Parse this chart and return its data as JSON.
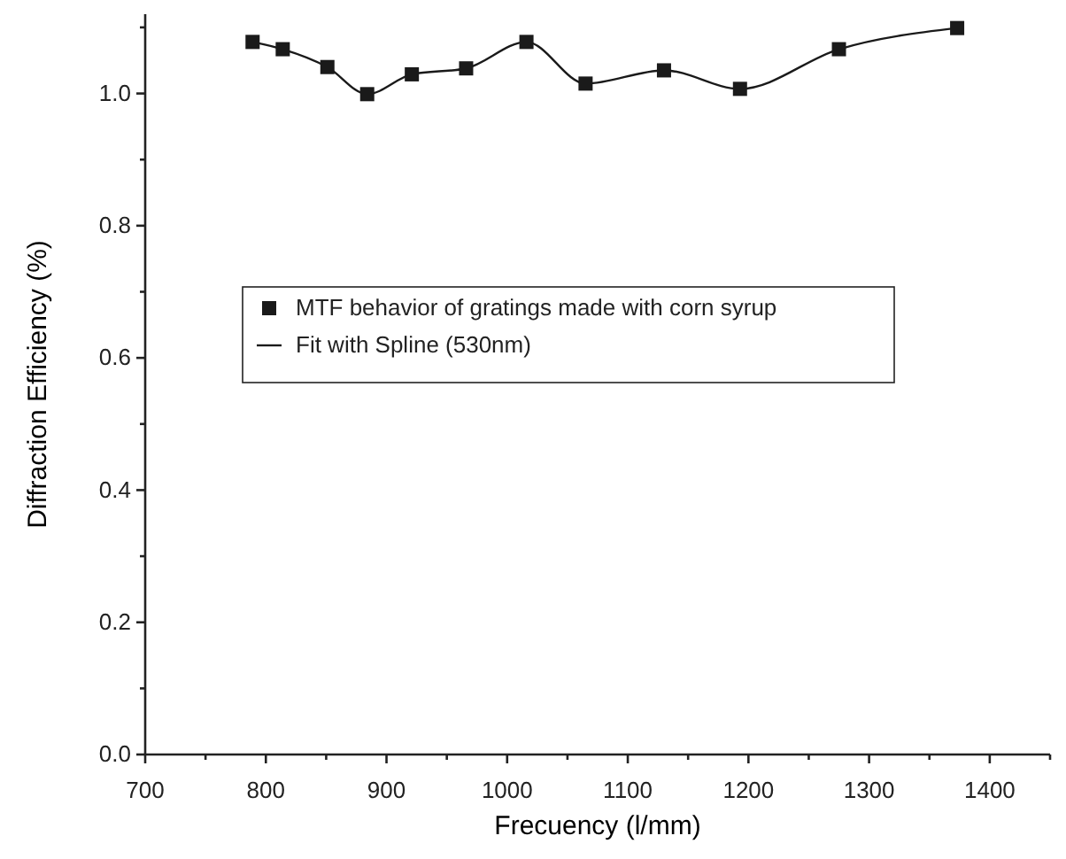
{
  "chart_data": {
    "type": "scatter",
    "xlabel": "Frecuency (l/mm)",
    "ylabel": "Diffraction Efficiency (%)",
    "xlim": [
      700,
      1450
    ],
    "ylim": [
      0,
      1.12
    ],
    "xticks": [
      700,
      {
        "value": 750,
        "label": null
      },
      800,
      {
        "value": 850,
        "label": null
      },
      900,
      {
        "value": 950,
        "label": null
      },
      1000,
      {
        "value": 1050,
        "label": null
      },
      1100,
      {
        "value": 1150,
        "label": null
      },
      1200,
      {
        "value": 1250,
        "label": null
      },
      1300,
      {
        "value": 1350,
        "label": null
      },
      1400,
      {
        "value": 1450,
        "label": null
      }
    ],
    "yticks": [
      {
        "value": 0,
        "label": "0.0"
      },
      {
        "value": 0.1,
        "label": null
      },
      {
        "value": 0.2,
        "label": "0.2"
      },
      {
        "value": 0.3,
        "label": null
      },
      {
        "value": 0.4,
        "label": "0.4"
      },
      {
        "value": 0.5,
        "label": null
      },
      {
        "value": 0.6,
        "label": "0.6"
      },
      {
        "value": 0.7,
        "label": null
      },
      {
        "value": 0.8,
        "label": "0.8"
      },
      {
        "value": 0.9,
        "label": null
      },
      {
        "value": 1.0,
        "label": "1.0"
      },
      {
        "value": 1.1,
        "label": null
      }
    ],
    "grid": false,
    "legend": "left",
    "series": [
      {
        "name": "Fit with Spline (530nm)",
        "type": "line",
        "color": "#1a1a1a",
        "line_style": "solid",
        "x": [
          789,
          814,
          851,
          884,
          921,
          966,
          1016,
          1065,
          1130,
          1193,
          1275,
          1373
        ],
        "values": [
          1.078,
          1.067,
          1.04,
          0.999,
          1.029,
          1.038,
          1.078,
          1.015,
          1.035,
          1.007,
          1.067,
          1.099
        ]
      },
      {
        "name": "MTF behavior of gratings made with corn syrup",
        "color": "#1a1a1a",
        "marker": "square",
        "x": [
          789,
          814,
          851,
          884,
          921,
          966,
          1016,
          1065,
          1130,
          1193,
          1275,
          1373
        ],
        "values": [
          1.078,
          1.067,
          1.04,
          0.999,
          1.029,
          1.038,
          1.078,
          1.015,
          1.035,
          1.007,
          1.067,
          1.099
        ]
      }
    ]
  }
}
